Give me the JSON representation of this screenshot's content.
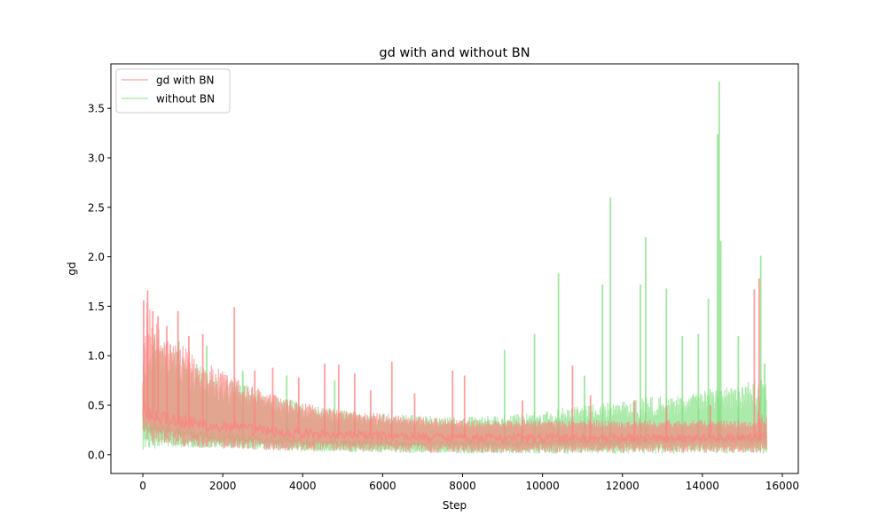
{
  "chart_data": {
    "type": "line",
    "title": "gd with and without BN",
    "xlabel": "Step",
    "ylabel": "gd",
    "xlim": [
      -800,
      16400
    ],
    "ylim": [
      -0.19,
      3.95
    ],
    "xticks": [
      0,
      2000,
      4000,
      6000,
      8000,
      10000,
      12000,
      14000,
      16000
    ],
    "xtick_labels": [
      "0",
      "2000",
      "4000",
      "6000",
      "8000",
      "10000",
      "12000",
      "14000",
      "16000"
    ],
    "yticks": [
      0.0,
      0.5,
      1.0,
      1.5,
      2.0,
      2.5,
      3.0,
      3.5
    ],
    "ytick_labels": [
      "0.0",
      "0.5",
      "1.0",
      "1.5",
      "2.0",
      "2.5",
      "3.0",
      "3.5"
    ],
    "grid": false,
    "legend_position": "upper-left",
    "series": [
      {
        "name": "gd with BN",
        "color": "#ff7f7f",
        "x": [
          0,
          100,
          200,
          400,
          600,
          800,
          1000,
          1500,
          2000,
          2500,
          3000,
          3500,
          4000,
          5000,
          6000,
          7000,
          8000,
          9000,
          10000,
          11000,
          12000,
          13000,
          14000,
          15000,
          15300,
          15400,
          15600
        ],
        "upper": [
          0.95,
          1.55,
          1.45,
          1.3,
          1.2,
          1.15,
          1.1,
          0.95,
          0.85,
          0.75,
          0.65,
          0.58,
          0.52,
          0.45,
          0.42,
          0.38,
          0.35,
          0.35,
          0.35,
          0.35,
          0.35,
          0.35,
          0.35,
          0.35,
          0.35,
          0.45,
          0.4
        ],
        "center": [
          0.45,
          0.45,
          0.42,
          0.4,
          0.37,
          0.35,
          0.33,
          0.3,
          0.28,
          0.26,
          0.24,
          0.22,
          0.21,
          0.2,
          0.19,
          0.18,
          0.18,
          0.17,
          0.17,
          0.17,
          0.17,
          0.17,
          0.17,
          0.17,
          0.17,
          0.18,
          0.18
        ],
        "lower": [
          0.25,
          0.15,
          0.12,
          0.1,
          0.09,
          0.08,
          0.08,
          0.07,
          0.06,
          0.05,
          0.05,
          0.04,
          0.04,
          0.03,
          0.03,
          0.02,
          0.02,
          0.02,
          0.02,
          0.02,
          0.02,
          0.02,
          0.02,
          0.02,
          0.02,
          0.02,
          0.02
        ],
        "spikes": [
          {
            "x": 20,
            "y": 1.56
          },
          {
            "x": 120,
            "y": 1.66
          },
          {
            "x": 250,
            "y": 1.45
          },
          {
            "x": 380,
            "y": 1.4
          },
          {
            "x": 600,
            "y": 1.3
          },
          {
            "x": 880,
            "y": 1.45
          },
          {
            "x": 1150,
            "y": 1.2
          },
          {
            "x": 1500,
            "y": 1.22
          },
          {
            "x": 2290,
            "y": 1.49
          },
          {
            "x": 2800,
            "y": 0.85
          },
          {
            "x": 3250,
            "y": 0.88
          },
          {
            "x": 3900,
            "y": 0.78
          },
          {
            "x": 4550,
            "y": 0.92
          },
          {
            "x": 4900,
            "y": 0.91
          },
          {
            "x": 5300,
            "y": 0.82
          },
          {
            "x": 5700,
            "y": 0.65
          },
          {
            "x": 6230,
            "y": 0.94
          },
          {
            "x": 6800,
            "y": 0.62
          },
          {
            "x": 7750,
            "y": 0.85
          },
          {
            "x": 8050,
            "y": 0.8
          },
          {
            "x": 9500,
            "y": 0.55
          },
          {
            "x": 10750,
            "y": 0.9
          },
          {
            "x": 11200,
            "y": 0.6
          },
          {
            "x": 12300,
            "y": 0.55
          },
          {
            "x": 13100,
            "y": 0.5
          },
          {
            "x": 14200,
            "y": 0.5
          },
          {
            "x": 15300,
            "y": 1.67
          },
          {
            "x": 15420,
            "y": 1.78
          }
        ]
      },
      {
        "name": "without BN",
        "color": "#7fdf7f",
        "x": [
          0,
          100,
          200,
          400,
          600,
          800,
          1000,
          1500,
          2000,
          2500,
          3000,
          3500,
          4000,
          5000,
          6000,
          7000,
          8000,
          9000,
          10000,
          11000,
          12000,
          13000,
          14000,
          15000,
          15300,
          15400,
          15600
        ],
        "upper": [
          0.75,
          1.15,
          1.2,
          1.15,
          1.1,
          1.05,
          1.0,
          0.9,
          0.8,
          0.72,
          0.65,
          0.58,
          0.52,
          0.45,
          0.42,
          0.4,
          0.38,
          0.4,
          0.45,
          0.5,
          0.55,
          0.6,
          0.65,
          0.72,
          0.75,
          0.8,
          0.85
        ],
        "center": [
          0.35,
          0.3,
          0.28,
          0.25,
          0.24,
          0.22,
          0.21,
          0.19,
          0.17,
          0.16,
          0.15,
          0.14,
          0.13,
          0.12,
          0.12,
          0.11,
          0.11,
          0.11,
          0.12,
          0.12,
          0.13,
          0.14,
          0.15,
          0.15,
          0.15,
          0.15,
          0.15
        ],
        "lower": [
          0.02,
          0.04,
          0.05,
          0.06,
          0.07,
          0.07,
          0.07,
          0.07,
          0.07,
          0.06,
          0.05,
          0.04,
          0.03,
          0.02,
          0.02,
          0.01,
          0.01,
          0.01,
          0.01,
          0.01,
          0.01,
          0.01,
          0.01,
          0.01,
          0.01,
          0.01,
          0.01
        ],
        "spikes": [
          {
            "x": 300,
            "y": 1.22
          },
          {
            "x": 900,
            "y": 1.15
          },
          {
            "x": 1600,
            "y": 1.1
          },
          {
            "x": 2500,
            "y": 0.85
          },
          {
            "x": 3600,
            "y": 0.8
          },
          {
            "x": 4800,
            "y": 0.75
          },
          {
            "x": 9050,
            "y": 1.06
          },
          {
            "x": 9800,
            "y": 1.22
          },
          {
            "x": 10400,
            "y": 1.83
          },
          {
            "x": 11050,
            "y": 0.8
          },
          {
            "x": 11500,
            "y": 1.72
          },
          {
            "x": 11700,
            "y": 2.6
          },
          {
            "x": 12450,
            "y": 1.72
          },
          {
            "x": 12580,
            "y": 2.2
          },
          {
            "x": 13100,
            "y": 1.68
          },
          {
            "x": 13500,
            "y": 1.2
          },
          {
            "x": 13900,
            "y": 1.22
          },
          {
            "x": 14150,
            "y": 1.58
          },
          {
            "x": 14380,
            "y": 3.24
          },
          {
            "x": 14420,
            "y": 3.77
          },
          {
            "x": 14460,
            "y": 2.16
          },
          {
            "x": 14900,
            "y": 1.2
          },
          {
            "x": 15460,
            "y": 2.01
          },
          {
            "x": 15560,
            "y": 0.92
          }
        ]
      }
    ]
  }
}
